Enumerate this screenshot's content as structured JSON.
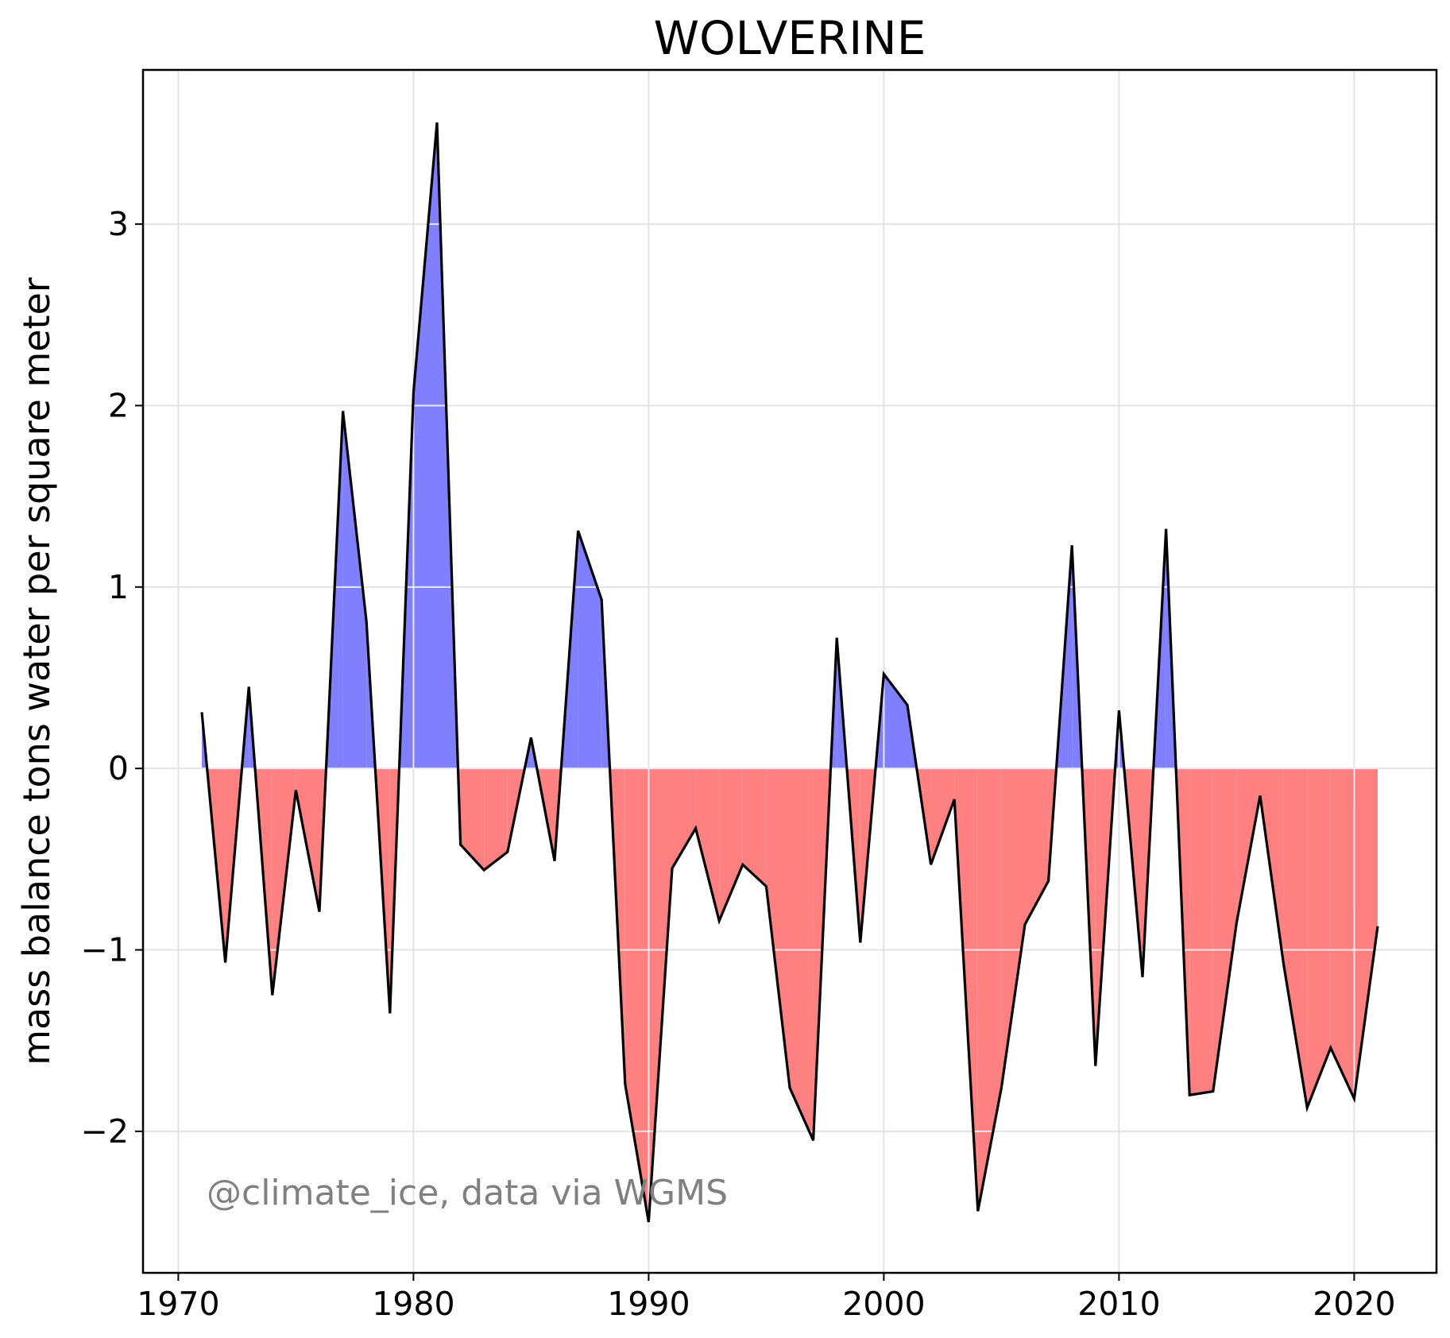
{
  "chart_data": {
    "type": "area",
    "title": "WOLVERINE",
    "xlabel": "",
    "ylabel": "mass balance tons water per square meter",
    "annotation": "@climate_ice, data via WGMS",
    "xlim": [
      1968.5,
      2023.5
    ],
    "ylim": [
      -2.78,
      3.85
    ],
    "xticks": [
      1970,
      1980,
      1990,
      2000,
      2010,
      2020
    ],
    "yticks": [
      -2,
      -1,
      0,
      1,
      2,
      3
    ],
    "ytick_labels": [
      "−2",
      "−1",
      "0",
      "1",
      "2",
      "3"
    ],
    "grid": true,
    "fill_positive_color": "#8080ff",
    "fill_negative_color": "#ff8080",
    "line_color": "#000000",
    "x": [
      1971,
      1972,
      1973,
      1974,
      1975,
      1976,
      1977,
      1978,
      1979,
      1980,
      1981,
      1982,
      1983,
      1984,
      1985,
      1986,
      1987,
      1988,
      1989,
      1990,
      1991,
      1992,
      1993,
      1994,
      1995,
      1996,
      1997,
      1998,
      1999,
      2000,
      2001,
      2002,
      2003,
      2004,
      2005,
      2006,
      2007,
      2008,
      2009,
      2010,
      2011,
      2012,
      2013,
      2014,
      2015,
      2016,
      2017,
      2018,
      2019,
      2020,
      2021
    ],
    "values": [
      0.31,
      -1.07,
      0.45,
      -1.25,
      -0.12,
      -0.79,
      1.97,
      0.81,
      -1.35,
      2.07,
      3.56,
      -0.42,
      -0.56,
      -0.46,
      0.17,
      -0.51,
      1.31,
      0.93,
      -1.74,
      -2.5,
      -0.55,
      -0.33,
      -0.84,
      -0.53,
      -0.65,
      -1.76,
      -2.05,
      0.72,
      -0.96,
      0.52,
      0.35,
      -0.53,
      -0.17,
      -2.44,
      -1.76,
      -0.86,
      -0.62,
      1.23,
      -1.64,
      0.32,
      -1.15,
      1.32,
      -1.8,
      -1.78,
      -0.85,
      -0.15,
      -1.08,
      -1.87,
      -1.54,
      -1.82,
      -0.87
    ]
  }
}
